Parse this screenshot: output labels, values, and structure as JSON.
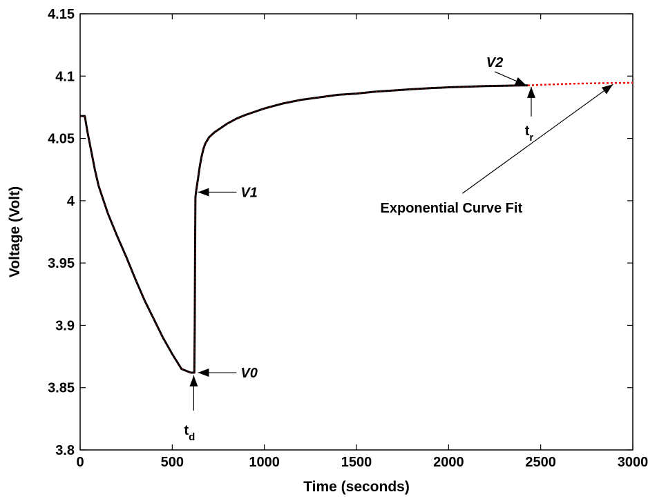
{
  "chart_data": {
    "type": "line",
    "title": "",
    "xlabel": "Time (seconds)",
    "ylabel": "Voltage (Volt)",
    "xlim": [
      0,
      3000
    ],
    "ylim": [
      3.8,
      4.15
    ],
    "x_ticks": [
      0,
      500,
      1000,
      1500,
      2000,
      2500,
      3000
    ],
    "x_tick_labels": [
      "0",
      "500",
      "1000",
      "1500",
      "2000",
      "2500",
      "3000"
    ],
    "y_ticks": [
      3.8,
      3.85,
      3.9,
      3.95,
      4.0,
      4.05,
      4.1,
      4.15
    ],
    "y_tick_labels": [
      "3.8",
      "3.85",
      "3.9",
      "3.95",
      "4",
      "4.05",
      "4.1",
      "4.15"
    ],
    "grid": false,
    "series": [
      {
        "color": "#000000",
        "style": "solid",
        "x": [
          0,
          25,
          40,
          60,
          80,
          100,
          150,
          200,
          250,
          300,
          350,
          400,
          450,
          500,
          550,
          600,
          620,
          622,
          624,
          626,
          630,
          640,
          650,
          660,
          670,
          680,
          700,
          730,
          760,
          800,
          850,
          900,
          1000,
          1100,
          1200,
          1300,
          1400,
          1500,
          1600,
          1700,
          1800,
          1900,
          2000,
          2100,
          2200,
          2300,
          2400,
          2430
        ],
        "y": [
          4.068,
          4.068,
          4.055,
          4.04,
          4.025,
          4.012,
          3.99,
          3.972,
          3.955,
          3.937,
          3.92,
          3.905,
          3.89,
          3.877,
          3.865,
          3.862,
          3.862,
          3.9,
          3.96,
          4.003,
          4.008,
          4.018,
          4.028,
          4.036,
          4.042,
          4.046,
          4.051,
          4.055,
          4.058,
          4.062,
          4.066,
          4.069,
          4.074,
          4.078,
          4.081,
          4.083,
          4.085,
          4.086,
          4.0875,
          4.0885,
          4.0895,
          4.0903,
          4.091,
          4.0915,
          4.092,
          4.0923,
          4.0925,
          4.0925
        ]
      },
      {
        "color": "#ff0000",
        "style": "dotted",
        "x": [
          2430,
          2500,
          2600,
          2700,
          2800,
          2900,
          3000
        ],
        "y": [
          4.0925,
          4.093,
          4.0935,
          4.094,
          4.0943,
          4.0945,
          4.0946
        ]
      }
    ],
    "annotations": [
      {
        "id": "v2",
        "text": "V2",
        "italic": true,
        "target": [
          2430,
          4.0925
        ]
      },
      {
        "id": "tr",
        "text": "t",
        "sub": "r",
        "italic": false,
        "target": [
          2430,
          4.0925
        ]
      },
      {
        "id": "v1",
        "text": "V1",
        "italic": true,
        "target": [
          624,
          4.003
        ]
      },
      {
        "id": "v0",
        "text": "V0",
        "italic": true,
        "target": [
          624,
          3.862
        ]
      },
      {
        "id": "td",
        "text": "t",
        "sub": "d",
        "italic": false,
        "target": [
          624,
          3.862
        ]
      },
      {
        "id": "fit",
        "text": "Exponential Curve Fit",
        "italic": false,
        "target": [
          2900,
          4.0945
        ]
      }
    ]
  }
}
